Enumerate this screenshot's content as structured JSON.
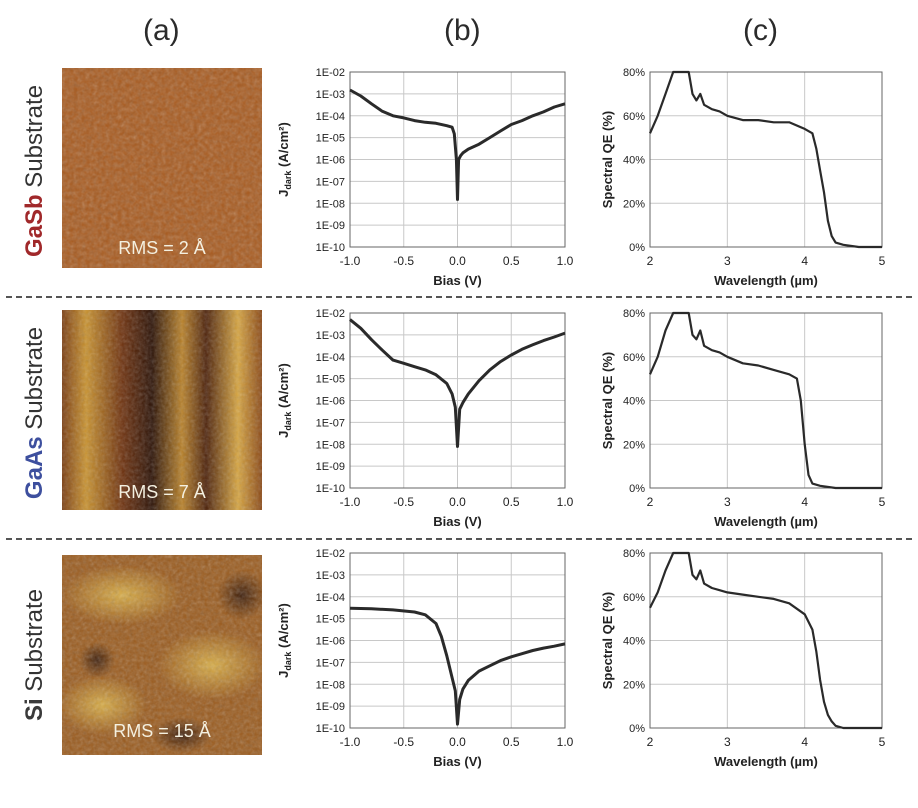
{
  "column_labels": [
    "(a)",
    "(b)",
    "(c)"
  ],
  "rows": [
    {
      "material": "GaSb",
      "material_color": "#a0282a",
      "suffix": "Substrate",
      "rms": "RMS = 2 Å"
    },
    {
      "material": "GaAs",
      "material_color": "#3d4f9e",
      "suffix": "Substrate",
      "rms": "RMS = 7 Å"
    },
    {
      "material": "Si",
      "material_color": "#3a3a3a",
      "suffix": "Substrate",
      "rms": "RMS = 15 Å"
    }
  ],
  "chart_data": [
    {
      "type": "line",
      "panel": "b-GaSb",
      "xlabel": "Bias (V)",
      "ylabel": "J_dark (A/cm²)",
      "yscale": "log",
      "xlim": [
        -1,
        1
      ],
      "ylim": [
        1e-10,
        0.01
      ],
      "xticks": [
        "-1.0",
        "-0.5",
        "0.0",
        "0.5",
        "1.0"
      ],
      "yticks": [
        "1E-10",
        "1E-09",
        "1E-08",
        "1E-07",
        "1E-06",
        "1E-05",
        "1E-04",
        "1E-03",
        "1E-02"
      ],
      "series": [
        {
          "x": [
            -1.0,
            -0.9,
            -0.8,
            -0.7,
            -0.6,
            -0.5,
            -0.4,
            -0.3,
            -0.2,
            -0.1,
            -0.05,
            -0.03,
            -0.01,
            0.0,
            0.01,
            0.03,
            0.05,
            0.1,
            0.2,
            0.3,
            0.4,
            0.5,
            0.6,
            0.7,
            0.8,
            0.9,
            1.0
          ],
          "y": [
            0.0015,
            0.0008,
            0.00035,
            0.00016,
            0.0001,
            8e-05,
            6e-05,
            5e-05,
            4.5e-05,
            3.5e-05,
            3e-05,
            1.5e-05,
            1e-06,
            1.5e-08,
            1e-06,
            1.5e-06,
            2e-06,
            3e-06,
            5e-06,
            1e-05,
            2e-05,
            4e-05,
            6e-05,
            0.0001,
            0.00015,
            0.00025,
            0.00035
          ]
        }
      ]
    },
    {
      "type": "line",
      "panel": "c-GaSb",
      "xlabel": "Wavelength (µm)",
      "ylabel": "Spectral QE (%)",
      "xlim": [
        2,
        5
      ],
      "ylim": [
        0,
        80
      ],
      "xticks": [
        "2",
        "3",
        "4",
        "5"
      ],
      "yticks": [
        "0%",
        "20%",
        "40%",
        "60%",
        "80%"
      ],
      "series": [
        {
          "x": [
            2.0,
            2.1,
            2.2,
            2.3,
            2.4,
            2.45,
            2.5,
            2.55,
            2.6,
            2.65,
            2.7,
            2.8,
            2.9,
            3.0,
            3.2,
            3.4,
            3.6,
            3.8,
            4.0,
            4.1,
            4.15,
            4.2,
            4.25,
            4.3,
            4.35,
            4.4,
            4.5,
            4.7,
            5.0
          ],
          "y": [
            52,
            60,
            70,
            85,
            95,
            90,
            80,
            70,
            67,
            70,
            65,
            63,
            62,
            60,
            58,
            58,
            57,
            57,
            54,
            52,
            45,
            35,
            25,
            12,
            5,
            2,
            1,
            0,
            0
          ]
        }
      ]
    },
    {
      "type": "line",
      "panel": "b-GaAs",
      "xlabel": "Bias (V)",
      "ylabel": "J_dark (A/cm²)",
      "yscale": "log",
      "xlim": [
        -1,
        1
      ],
      "ylim": [
        1e-10,
        0.01
      ],
      "xticks": [
        "-1.0",
        "-0.5",
        "0.0",
        "0.5",
        "1.0"
      ],
      "yticks": [
        "1E-10",
        "1E-09",
        "1E-08",
        "1E-07",
        "1E-06",
        "1E-05",
        "1E-04",
        "1E-03",
        "1E-02"
      ],
      "series": [
        {
          "x": [
            -1.0,
            -0.9,
            -0.8,
            -0.7,
            -0.6,
            -0.5,
            -0.4,
            -0.3,
            -0.2,
            -0.1,
            -0.05,
            -0.02,
            0.0,
            0.02,
            0.05,
            0.1,
            0.2,
            0.3,
            0.4,
            0.5,
            0.6,
            0.7,
            0.8,
            0.9,
            1.0
          ],
          "y": [
            0.005,
            0.002,
            0.0006,
            0.0002,
            7e-05,
            5e-05,
            3.5e-05,
            2.5e-05,
            1.5e-05,
            6e-06,
            2e-06,
            5e-07,
            8e-09,
            4e-07,
            8e-07,
            2e-06,
            8e-06,
            2.5e-05,
            6e-05,
            0.00012,
            0.00022,
            0.00035,
            0.00055,
            0.0008,
            0.0012
          ]
        }
      ]
    },
    {
      "type": "line",
      "panel": "c-GaAs",
      "xlabel": "Wavelength (µm)",
      "ylabel": "Spectral QE (%)",
      "xlim": [
        2,
        5
      ],
      "ylim": [
        0,
        80
      ],
      "xticks": [
        "2",
        "3",
        "4",
        "5"
      ],
      "yticks": [
        "0%",
        "20%",
        "40%",
        "60%",
        "80%"
      ],
      "series": [
        {
          "x": [
            2.0,
            2.1,
            2.2,
            2.3,
            2.4,
            2.45,
            2.5,
            2.55,
            2.6,
            2.65,
            2.7,
            2.8,
            2.9,
            3.0,
            3.2,
            3.4,
            3.6,
            3.8,
            3.9,
            3.95,
            4.0,
            4.05,
            4.1,
            4.2,
            4.4,
            5.0
          ],
          "y": [
            52,
            60,
            72,
            86,
            95,
            90,
            80,
            70,
            68,
            72,
            65,
            63,
            62,
            60,
            57,
            56,
            54,
            52,
            50,
            40,
            20,
            6,
            2,
            1,
            0,
            0
          ]
        }
      ]
    },
    {
      "type": "line",
      "panel": "b-Si",
      "xlabel": "Bias (V)",
      "ylabel": "J_dark (A/cm²)",
      "yscale": "log",
      "xlim": [
        -1,
        1
      ],
      "ylim": [
        1e-10,
        0.01
      ],
      "xticks": [
        "-1.0",
        "-0.5",
        "0.0",
        "0.5",
        "1.0"
      ],
      "yticks": [
        "1E-10",
        "1E-09",
        "1E-08",
        "1E-07",
        "1E-06",
        "1E-05",
        "1E-04",
        "1E-03",
        "1E-02"
      ],
      "series": [
        {
          "x": [
            -1.0,
            -0.8,
            -0.6,
            -0.4,
            -0.3,
            -0.2,
            -0.15,
            -0.1,
            -0.05,
            -0.02,
            0.0,
            0.02,
            0.05,
            0.1,
            0.2,
            0.3,
            0.4,
            0.5,
            0.6,
            0.7,
            0.8,
            0.9,
            1.0
          ],
          "y": [
            3e-05,
            2.8e-05,
            2.5e-05,
            2e-05,
            1.5e-05,
            6e-06,
            1.5e-06,
            2e-07,
            2e-08,
            5e-09,
            1.5e-10,
            2e-09,
            6e-09,
            1.5e-08,
            4e-08,
            7e-08,
            1.2e-07,
            1.8e-07,
            2.5e-07,
            3.5e-07,
            4.5e-07,
            5.5e-07,
            7e-07
          ]
        }
      ]
    },
    {
      "type": "line",
      "panel": "c-Si",
      "xlabel": "Wavelength (µm)",
      "ylabel": "Spectral QE (%)",
      "xlim": [
        2,
        5
      ],
      "ylim": [
        0,
        80
      ],
      "xticks": [
        "2",
        "3",
        "4",
        "5"
      ],
      "yticks": [
        "0%",
        "20%",
        "40%",
        "60%",
        "80%"
      ],
      "series": [
        {
          "x": [
            2.0,
            2.1,
            2.2,
            2.3,
            2.4,
            2.45,
            2.5,
            2.55,
            2.6,
            2.65,
            2.7,
            2.8,
            2.9,
            3.0,
            3.2,
            3.4,
            3.6,
            3.8,
            4.0,
            4.1,
            4.15,
            4.2,
            4.25,
            4.3,
            4.35,
            4.4,
            4.5,
            4.7,
            5.0
          ],
          "y": [
            55,
            62,
            72,
            85,
            95,
            90,
            80,
            70,
            68,
            72,
            66,
            64,
            63,
            62,
            61,
            60,
            59,
            57,
            52,
            45,
            35,
            22,
            12,
            6,
            3,
            1,
            0,
            0,
            0
          ]
        }
      ]
    }
  ]
}
